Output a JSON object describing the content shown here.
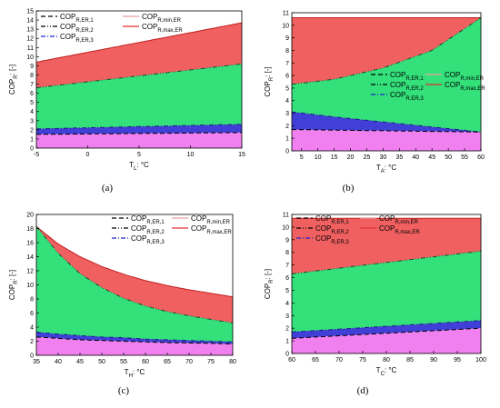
{
  "chart_data": [
    {
      "panel": "(a)",
      "type": "area",
      "xlabel": "T",
      "xlabel_sub": "L",
      "xlabel_unit": ": °C",
      "ylabel": "COP",
      "ylabel_sub": "R",
      "ylabel_unit": ": [-]",
      "xlim": [
        -5,
        15
      ],
      "ylim": [
        0,
        15
      ],
      "xticks": [
        -5,
        0,
        5,
        10,
        15
      ],
      "yticks": [
        0,
        1,
        2,
        3,
        4,
        5,
        6,
        7,
        8,
        9,
        10,
        11,
        12,
        13,
        14,
        15
      ],
      "x": [
        -5,
        15
      ],
      "max_curve": [
        9.4,
        13.7
      ],
      "er1": [
        6.6,
        9.2
      ],
      "er2": [
        2.1,
        2.6
      ],
      "er3": [
        1.6,
        1.9
      ],
      "min_curve": [
        1.5,
        1.7
      ],
      "legend_position": "top-left",
      "legend": [
        {
          "main": "COP",
          "sub": "R,ER,1",
          "style": "dash",
          "color": "#000000"
        },
        {
          "main": "COP",
          "sub": "R,min,ER",
          "style": "solid",
          "color": "#e8a0a0"
        },
        {
          "main": "COP",
          "sub": "R,ER,2",
          "style": "dashdotdot",
          "color": "#000000"
        },
        {
          "main": "COP",
          "sub": "R,max,ER",
          "style": "solid",
          "color": "#e03030"
        },
        {
          "main": "COP",
          "sub": "R,ER,3",
          "style": "dashdot",
          "color": "#2222cc"
        }
      ]
    },
    {
      "panel": "(b)",
      "type": "area",
      "xlabel": "T",
      "xlabel_sub": "A",
      "xlabel_unit": ": °C",
      "ylabel": "COP",
      "ylabel_sub": "R",
      "ylabel_unit": ": [-]",
      "xlim": [
        2,
        60
      ],
      "ylim": [
        0,
        11
      ],
      "xticks": [
        5,
        10,
        15,
        20,
        25,
        30,
        35,
        40,
        45,
        50,
        55,
        60
      ],
      "yticks": [
        0,
        1,
        2,
        3,
        4,
        5,
        6,
        7,
        8,
        9,
        10,
        11
      ],
      "x": [
        2,
        15,
        30,
        45,
        60
      ],
      "max_curve": [
        10.6,
        10.6,
        10.6,
        10.6,
        10.6
      ],
      "er1": [
        5.3,
        5.7,
        6.6,
        8.0,
        10.6
      ],
      "er2": [
        3.1,
        2.7,
        2.3,
        1.9,
        1.5
      ],
      "min_curve": [
        1.7,
        1.65,
        1.6,
        1.55,
        1.5
      ],
      "legend_position": "center-right",
      "legend": [
        {
          "main": "COP",
          "sub": "R,ER,1",
          "style": "dash",
          "color": "#000000"
        },
        {
          "main": "COP",
          "sub": "R,min,ER",
          "style": "solid",
          "color": "#e8a0a0"
        },
        {
          "main": "COP",
          "sub": "R,ER,2",
          "style": "dashdotdot",
          "color": "#000000"
        },
        {
          "main": "COP",
          "sub": "R,max,ER",
          "style": "solid",
          "color": "#e03030"
        },
        {
          "main": "COP",
          "sub": "R,ER,3",
          "style": "dashdot",
          "color": "#2222cc"
        }
      ]
    },
    {
      "panel": "(c)",
      "type": "area",
      "xlabel": "T",
      "xlabel_sub": "H",
      "xlabel_unit": ": °C",
      "ylabel": "COP",
      "ylabel_sub": "R",
      "ylabel_unit": ": [-]",
      "xlim": [
        35,
        80
      ],
      "ylim": [
        0,
        20
      ],
      "xticks": [
        35,
        40,
        45,
        50,
        55,
        60,
        65,
        70,
        75,
        80
      ],
      "yticks": [
        0,
        2,
        4,
        6,
        8,
        10,
        12,
        14,
        16,
        18,
        20
      ],
      "x": [
        35,
        40,
        45,
        50,
        55,
        60,
        65,
        70,
        75,
        80
      ],
      "max_curve": [
        18.3,
        15.8,
        14.0,
        12.6,
        11.5,
        10.6,
        9.9,
        9.3,
        8.8,
        8.3
      ],
      "er1": [
        18.3,
        14.5,
        11.6,
        9.6,
        8.1,
        7.0,
        6.2,
        5.6,
        5.1,
        4.6
      ],
      "er2": [
        3.3,
        3.0,
        2.8,
        2.6,
        2.5,
        2.3,
        2.2,
        2.1,
        2.0,
        1.9
      ],
      "min_curve": [
        2.6,
        2.4,
        2.2,
        2.1,
        2.0,
        1.9,
        1.8,
        1.75,
        1.7,
        1.6
      ],
      "legend_position": "top-right",
      "legend": [
        {
          "main": "COP",
          "sub": "R,ER,1",
          "style": "dash",
          "color": "#000000"
        },
        {
          "main": "COP",
          "sub": "R,min,ER",
          "style": "solid",
          "color": "#e8a0a0"
        },
        {
          "main": "COP",
          "sub": "R,ER,2",
          "style": "dashdotdot",
          "color": "#000000"
        },
        {
          "main": "COP",
          "sub": "R,max,ER",
          "style": "solid",
          "color": "#e03030"
        },
        {
          "main": "COP",
          "sub": "R,ER,3",
          "style": "dashdot",
          "color": "#2222cc"
        }
      ]
    },
    {
      "panel": "(d)",
      "type": "area",
      "xlabel": "T",
      "xlabel_sub": "C",
      "xlabel_unit": ": °C",
      "ylabel": "COP",
      "ylabel_sub": "R",
      "ylabel_unit": ": [-]",
      "xlim": [
        60,
        100
      ],
      "ylim": [
        0,
        11
      ],
      "xticks": [
        60,
        65,
        70,
        75,
        80,
        85,
        90,
        95,
        100
      ],
      "yticks": [
        0,
        1,
        2,
        3,
        4,
        5,
        6,
        7,
        8,
        9,
        10,
        11
      ],
      "x": [
        60,
        100
      ],
      "max_curve": [
        10.7,
        10.7
      ],
      "er1": [
        6.3,
        8.1
      ],
      "er2": [
        1.7,
        2.6
      ],
      "er3": [
        1.7,
        2.5
      ],
      "min_curve": [
        1.2,
        2.0
      ],
      "legend_position": "top-left",
      "legend": [
        {
          "main": "COP",
          "sub": "R,ER,1",
          "style": "dash",
          "color": "#000000"
        },
        {
          "main": "COP",
          "sub": "R,min,ER",
          "style": "solid",
          "color": "#e8a0a0"
        },
        {
          "main": "COP",
          "sub": "R,ER,2",
          "style": "dashdotdot",
          "color": "#000000"
        },
        {
          "main": "COP",
          "sub": "R,max,ER",
          "style": "solid",
          "color": "#e03030"
        },
        {
          "main": "COP",
          "sub": "R,ER,3",
          "style": "dashdot",
          "color": "#2222cc"
        }
      ]
    }
  ],
  "colors": {
    "red_region": "#f06060",
    "green_region": "#33e07a",
    "blue_region": "#4040d8",
    "magenta_region": "#f080f0"
  }
}
